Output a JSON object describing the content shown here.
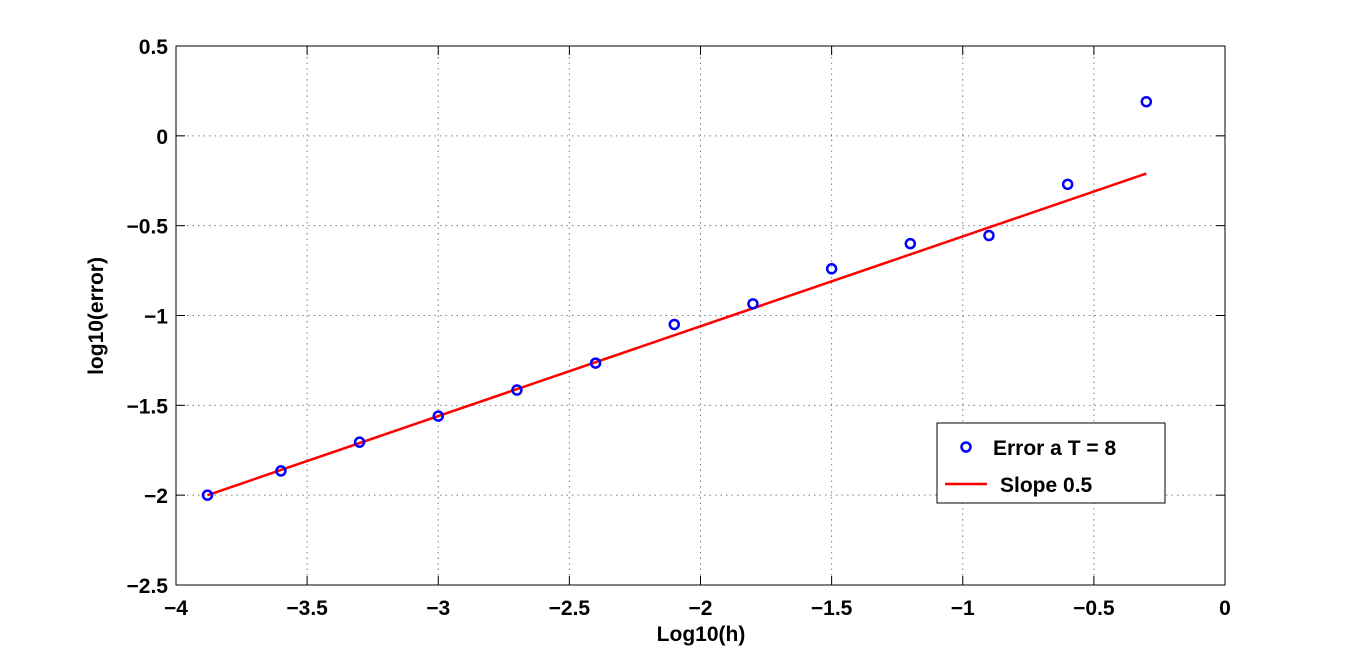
{
  "chart_data": {
    "type": "scatter",
    "title": "",
    "xlabel": "Log10(h)",
    "ylabel": "log10(error)",
    "xlim": [
      -4,
      0
    ],
    "ylim": [
      -2.5,
      0.5
    ],
    "x_ticks": [
      -4,
      -3.5,
      -3,
      -2.5,
      -2,
      -1.5,
      -1,
      -0.5,
      0
    ],
    "x_tick_labels": [
      "−4",
      "−3.5",
      "−3",
      "−2.5",
      "−2",
      "−1.5",
      "−1",
      "−0.5",
      "0"
    ],
    "y_ticks": [
      -2.5,
      -2,
      -1.5,
      -1,
      -0.5,
      0,
      0.5
    ],
    "y_tick_labels": [
      "−2.5",
      "−2",
      "−1.5",
      "−1",
      "−0.5",
      "0",
      "0.5"
    ],
    "grid": true,
    "grid_style": "dotted",
    "legend_position": "lower-right",
    "series": [
      {
        "name": "Error a T = 8",
        "kind": "scatter",
        "marker": "circle",
        "color": "#0000ff",
        "x": [
          -3.88,
          -3.6,
          -3.3,
          -3.0,
          -2.7,
          -2.4,
          -2.1,
          -1.8,
          -1.5,
          -1.2,
          -0.9,
          -0.6,
          -0.3
        ],
        "y": [
          -2.0,
          -1.865,
          -1.705,
          -1.56,
          -1.415,
          -1.265,
          -1.05,
          -0.935,
          -0.74,
          -0.6,
          -0.555,
          -0.27,
          0.19
        ]
      },
      {
        "name": "Slope 0.5",
        "kind": "line",
        "color": "#ff0000",
        "x": [
          -3.88,
          -0.3
        ],
        "y": [
          -2.0,
          -0.21
        ]
      }
    ]
  }
}
